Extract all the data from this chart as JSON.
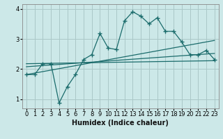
{
  "xlabel": "Humidex (Indice chaleur)",
  "ylabel": "",
  "bg_color": "#cce8e8",
  "grid_color": "#aac8c8",
  "line_color": "#1a6b6b",
  "xlim": [
    -0.5,
    23.5
  ],
  "ylim": [
    0.7,
    4.15
  ],
  "yticks": [
    1,
    2,
    3,
    4
  ],
  "xticks": [
    0,
    1,
    2,
    3,
    4,
    5,
    6,
    7,
    8,
    9,
    10,
    11,
    12,
    13,
    14,
    15,
    16,
    17,
    18,
    19,
    20,
    21,
    22,
    23
  ],
  "line1_x": [
    0,
    1,
    2,
    3,
    4,
    5,
    6,
    7,
    8,
    9,
    10,
    11,
    12,
    13,
    14,
    15,
    16,
    17,
    18,
    19,
    20,
    21,
    22,
    23
  ],
  "line1_y": [
    1.82,
    1.82,
    2.18,
    2.18,
    0.88,
    1.42,
    1.82,
    2.32,
    2.48,
    3.18,
    2.7,
    2.65,
    3.6,
    3.9,
    3.75,
    3.5,
    3.7,
    3.25,
    3.25,
    2.9,
    2.48,
    2.48,
    2.62,
    2.32
  ],
  "line2_x": [
    0,
    23
  ],
  "line2_y": [
    1.82,
    2.95
  ],
  "line3_x": [
    0,
    23
  ],
  "line3_y": [
    2.08,
    2.52
  ],
  "line4_x": [
    0,
    23
  ],
  "line4_y": [
    2.18,
    2.28
  ]
}
